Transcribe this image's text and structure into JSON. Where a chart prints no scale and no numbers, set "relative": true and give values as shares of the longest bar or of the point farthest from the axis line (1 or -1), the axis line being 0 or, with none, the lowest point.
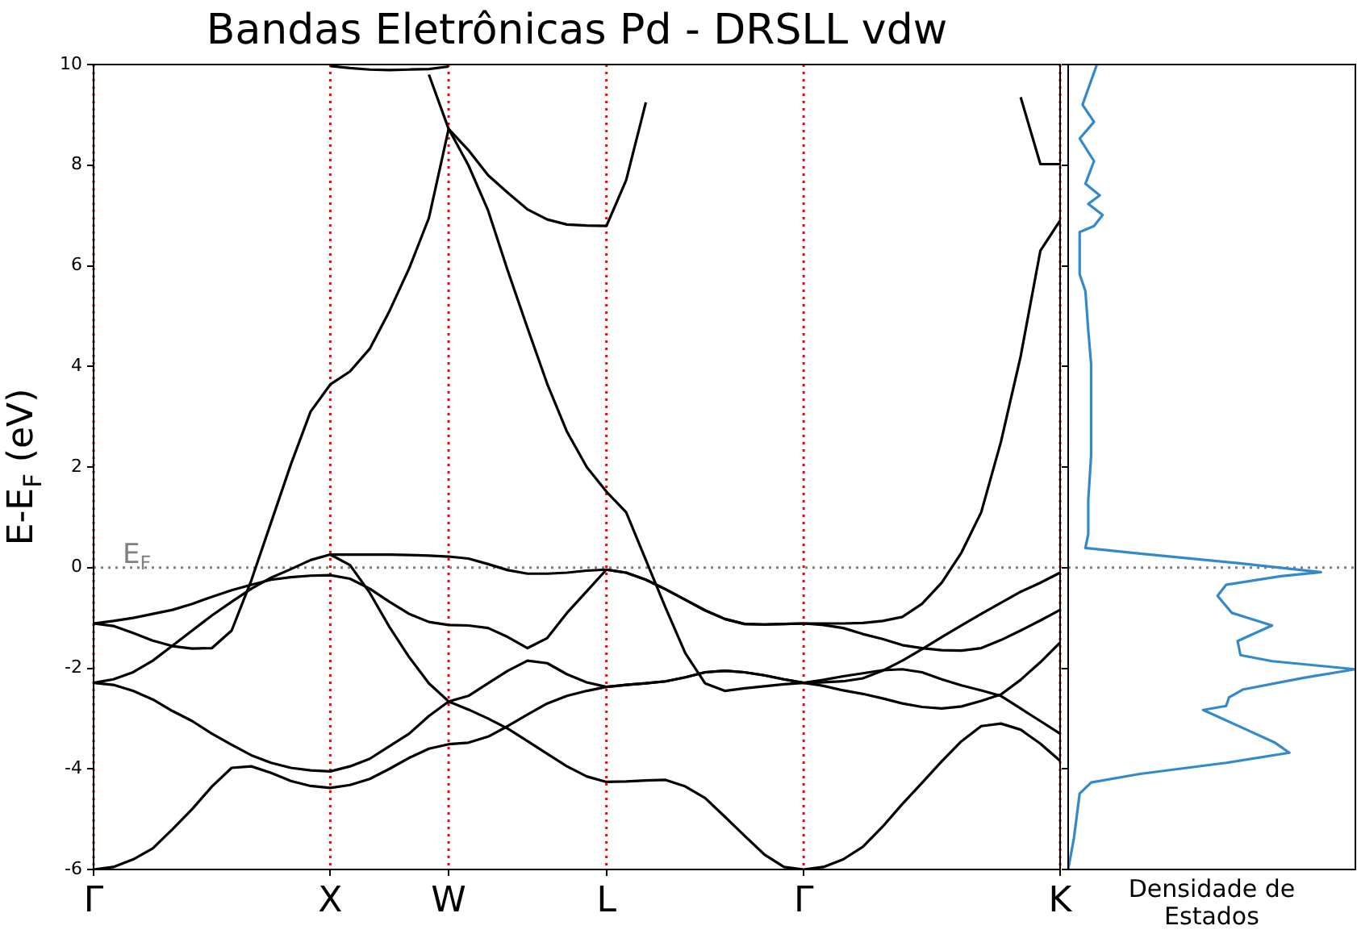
{
  "chart_data": [
    {
      "type": "line",
      "title": "Bandas Eletrônicas Pd - DRSLL vdw",
      "ylabel": "E-E$_{F}$ (eV)",
      "grid": "x",
      "categories": [
        "Γ",
        null,
        null,
        null,
        null,
        null,
        null,
        null,
        null,
        null,
        null,
        null,
        "X",
        null,
        null,
        null,
        null,
        null,
        "W",
        null,
        null,
        null,
        null,
        null,
        null,
        null,
        "L",
        null,
        null,
        null,
        null,
        null,
        null,
        null,
        null,
        null,
        "Γ",
        null,
        null,
        null,
        null,
        null,
        null,
        null,
        null,
        null,
        null,
        null,
        null,
        "K"
      ],
      "ylim": [
        -6,
        10
      ],
      "yticks": [
        -6,
        -4,
        -2,
        0,
        2,
        4,
        6,
        8,
        10
      ],
      "ref_lines": [
        {
          "axis": "y",
          "value": 0,
          "label": "E$_{F}$",
          "color": "#808080",
          "line_style": "dotted"
        }
      ],
      "series": [
        {
          "color": "#000000",
          "values": [
            -6.0,
            -5.95,
            -5.8,
            -5.58,
            -5.2,
            -4.8,
            -4.35,
            -3.98,
            -3.95,
            -4.08,
            -4.24,
            -4.34,
            -4.38,
            -4.32,
            -4.2,
            -4.0,
            -3.78,
            -3.6,
            -3.51,
            -3.48,
            -3.36,
            -3.15,
            -2.92,
            -2.7,
            -2.55,
            -2.45,
            -2.37,
            -2.33,
            -2.3,
            -2.26,
            -2.18,
            -2.08,
            -2.05,
            -2.08,
            -2.14,
            -2.22,
            -2.29,
            -2.23,
            -2.16,
            -2.1,
            -2.04,
            -2.02,
            -2.08,
            -2.22,
            -2.34,
            -2.44,
            -2.55,
            -2.8,
            -3.05,
            -3.3
          ]
        },
        {
          "color": "#000000",
          "values": [
            -2.29,
            -2.33,
            -2.45,
            -2.62,
            -2.85,
            -3.05,
            -3.3,
            -3.52,
            -3.73,
            -3.88,
            -3.98,
            -4.03,
            -4.05,
            -3.95,
            -3.8,
            -3.55,
            -3.3,
            -2.95,
            -2.66,
            -2.82,
            -3.0,
            -3.2,
            -3.45,
            -3.7,
            -3.95,
            -4.15,
            -4.26,
            -4.25,
            -4.23,
            -4.22,
            -4.35,
            -4.58,
            -4.95,
            -5.33,
            -5.7,
            -5.95,
            -6.0,
            -5.95,
            -5.8,
            -5.55,
            -5.15,
            -4.7,
            -4.28,
            -3.85,
            -3.45,
            -3.15,
            -3.1,
            -3.22,
            -3.5,
            -3.84
          ]
        },
        {
          "color": "#000000",
          "values": [
            -2.29,
            -2.22,
            -2.08,
            -1.85,
            -1.55,
            -1.25,
            -0.95,
            -0.68,
            -0.42,
            -0.2,
            -0.03,
            0.15,
            0.26,
            0.26,
            0.26,
            0.26,
            0.25,
            0.24,
            0.22,
            0.18,
            0.07,
            -0.05,
            -0.12,
            -0.12,
            -0.1,
            -0.06,
            -0.04,
            -0.1,
            -0.24,
            -0.43,
            -0.64,
            -0.85,
            -1.02,
            -1.12,
            -1.13,
            -1.12,
            -1.11,
            -1.14,
            -1.2,
            -1.32,
            -1.42,
            -1.54,
            -1.6,
            -1.64,
            -1.65,
            -1.6,
            -1.44,
            -1.25,
            -1.05,
            -0.84
          ]
        },
        {
          "color": "#000000",
          "values": [
            -1.11,
            -1.16,
            -1.3,
            -1.45,
            -1.56,
            -1.61,
            -1.6,
            -1.25,
            -0.25,
            0.9,
            2.05,
            3.1,
            3.64,
            3.9,
            4.35,
            5.1,
            5.95,
            6.95,
            8.72,
            8.3,
            7.8,
            7.45,
            7.12,
            6.92,
            6.82,
            6.8,
            6.79,
            7.7,
            9.25,
            null,
            null,
            null,
            null,
            null,
            null,
            null,
            null,
            null,
            null,
            null,
            null,
            null,
            null,
            null,
            null,
            null,
            null,
            null,
            null,
            null
          ]
        },
        {
          "color": "#000000",
          "values": [
            -1.11,
            -1.06,
            -1.0,
            -0.92,
            -0.84,
            -0.72,
            -0.58,
            -0.45,
            -0.34,
            -0.24,
            -0.19,
            -0.16,
            -0.15,
            -0.22,
            -0.42,
            -0.68,
            -0.92,
            -1.08,
            -1.14,
            -1.15,
            -1.2,
            -1.38,
            -1.6,
            -1.4,
            -0.9,
            -0.47,
            -0.04,
            -0.1,
            -0.24,
            -0.43,
            -0.64,
            -0.85,
            -1.02,
            -1.12,
            -1.13,
            -1.12,
            -1.11,
            -1.11,
            -1.11,
            -1.1,
            -1.06,
            -0.98,
            -0.72,
            -0.3,
            0.3,
            1.1,
            2.5,
            4.2,
            6.3,
            6.9
          ]
        },
        {
          "color": "#000000",
          "values": [
            null,
            null,
            null,
            null,
            null,
            null,
            null,
            null,
            null,
            null,
            null,
            null,
            0.26,
            0.05,
            -0.5,
            -1.18,
            -1.78,
            -2.3,
            -2.66,
            -2.55,
            -2.3,
            -2.05,
            -1.85,
            -1.9,
            -2.12,
            -2.28,
            -2.37,
            -2.33,
            -2.3,
            -2.26,
            -2.18,
            -2.08,
            -2.05,
            -2.08,
            -2.14,
            -2.22,
            -2.29,
            -2.35,
            -2.44,
            -2.51,
            -2.6,
            -2.7,
            -2.77,
            -2.8,
            -2.76,
            -2.65,
            -2.52,
            -2.23,
            -1.88,
            -1.49
          ]
        },
        {
          "color": "#000000",
          "values": [
            null,
            null,
            null,
            null,
            null,
            null,
            null,
            null,
            null,
            null,
            null,
            null,
            null,
            null,
            null,
            null,
            null,
            9.8,
            8.72,
            8.0,
            7.1,
            5.9,
            4.76,
            3.65,
            2.7,
            2.0,
            1.51,
            1.1,
            0.15,
            -0.8,
            -1.7,
            -2.3,
            -2.45,
            -2.4,
            -2.36,
            -2.32,
            -2.29,
            -2.28,
            -2.26,
            -2.2,
            -2.05,
            -1.85,
            -1.62,
            -1.38,
            -1.15,
            -0.92,
            -0.7,
            -0.48,
            -0.3,
            -0.1
          ]
        },
        {
          "color": "#000000",
          "values": [
            null,
            null,
            null,
            null,
            null,
            null,
            null,
            null,
            null,
            null,
            null,
            null,
            9.97,
            9.93,
            9.9,
            9.89,
            9.9,
            9.91,
            9.96,
            null,
            null,
            null,
            null,
            null,
            null,
            null,
            null,
            null,
            null,
            null,
            null,
            null,
            null,
            null,
            null,
            null,
            null,
            null,
            null,
            null,
            null,
            null,
            null,
            null,
            null,
            null,
            null,
            null,
            null,
            null
          ]
        },
        {
          "color": "#000000",
          "values": [
            null,
            null,
            null,
            null,
            null,
            null,
            null,
            null,
            null,
            null,
            null,
            null,
            null,
            null,
            null,
            null,
            null,
            null,
            null,
            null,
            null,
            null,
            null,
            null,
            null,
            null,
            null,
            null,
            null,
            null,
            null,
            null,
            null,
            null,
            null,
            null,
            null,
            null,
            null,
            null,
            null,
            null,
            null,
            null,
            null,
            null,
            null,
            9.35,
            8.02,
            8.02
          ]
        }
      ]
    },
    {
      "type": "line",
      "xlabel": "Densidade de Estados",
      "tick_labels": false,
      "relative": true,
      "orientation": "horizontal",
      "ylim": [
        -6,
        10
      ],
      "yticks": [
        -6,
        -4,
        -2,
        0,
        2,
        4,
        6,
        8,
        10
      ],
      "ref_lines": [
        {
          "axis": "y",
          "value": 0,
          "color": "#808080",
          "line_style": "dotted"
        }
      ],
      "series": [
        {
          "color": "#338acb",
          "x": [
            10.0,
            9.2,
            8.86,
            8.53,
            8.08,
            7.63,
            7.4,
            7.23,
            7.01,
            6.79,
            6.67,
            5.83,
            5.5,
            4.71,
            4.04,
            3.14,
            2.24,
            1.35,
            0.67,
            0.39,
            0.28,
            0.09,
            -0.09,
            -0.17,
            -0.34,
            -0.56,
            -0.9,
            -1.15,
            -1.46,
            -1.74,
            -1.86,
            -2.02,
            -2.19,
            -2.42,
            -2.58,
            -2.75,
            -2.83,
            -3.14,
            -3.48,
            -3.68,
            -3.88,
            -4.1,
            -4.27,
            -4.49,
            -5.38,
            -6.0
          ],
          "values": [
            0.1,
            0.05,
            0.09,
            0.04,
            0.09,
            0.06,
            0.11,
            0.07,
            0.12,
            0.09,
            0.04,
            0.04,
            0.06,
            0.07,
            0.08,
            0.08,
            0.08,
            0.07,
            0.07,
            0.06,
            0.25,
            0.59,
            0.88,
            0.74,
            0.55,
            0.52,
            0.57,
            0.71,
            0.59,
            0.6,
            0.71,
            1.0,
            0.82,
            0.61,
            0.56,
            0.55,
            0.47,
            0.59,
            0.72,
            0.77,
            0.55,
            0.25,
            0.08,
            0.04,
            0.02,
            0.0
          ]
        }
      ]
    }
  ]
}
